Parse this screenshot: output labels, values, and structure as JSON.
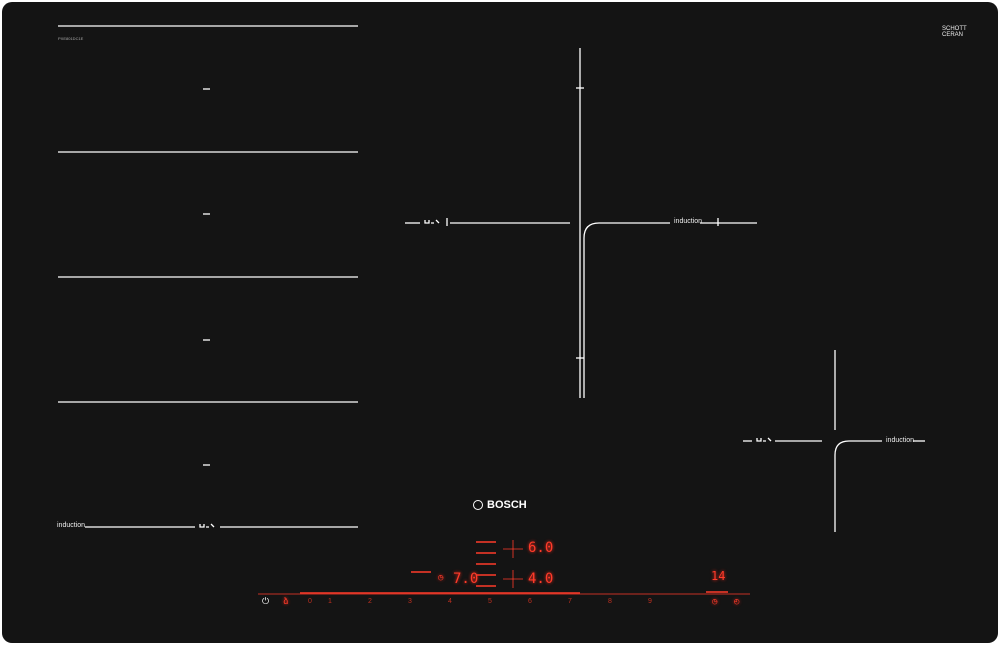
{
  "brand": "BOSCH",
  "glass_brand": {
    "line1": "SCHOTT",
    "line2": "CERAN"
  },
  "model_code": "PXE801DC1E",
  "zone_label": "induction",
  "displays": {
    "top_level": "6.0",
    "bottom_level": "4.0",
    "timer_level": "7.0",
    "timer_minutes": "14"
  },
  "power_scale": [
    "0",
    "1",
    "2",
    "3",
    "4",
    "5",
    "6",
    "7",
    "8",
    "9"
  ],
  "icons": [
    "power-icon",
    "child-lock-icon",
    "flex-zone-icon",
    "timer-icon",
    "boost-icon",
    "stopwatch-icon"
  ],
  "colors": {
    "glass": "#141414",
    "lines": "#ffffff",
    "display": "#ff3b2a"
  }
}
